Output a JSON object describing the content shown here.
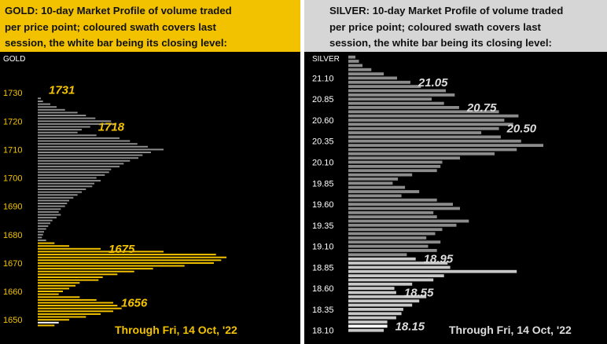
{
  "gold": {
    "header_lines": [
      "GOLD:  10-day Market Profile of volume traded",
      "per price point; coloured swath covers last",
      "session, the white bar being its closing level:"
    ],
    "footer": "Through Fri, 14 Oct, '22"
  },
  "silver": {
    "header_lines": [
      "SILVER:  10-day Market Profile of volume traded",
      "per price point; coloured swath covers last",
      "session, the white bar being its closing level:"
    ],
    "footer": "Through Fri, 14 Oct, '22"
  },
  "colors": {
    "gold_accent": "#f2c200",
    "silver_accent": "#d6d6d6",
    "bar_default": "#8c8c8c",
    "bar_session_gold": "#f2c200",
    "bar_session_silver": "#c8c8c8",
    "close_bar": "#ffffff",
    "gold_text": "#f2c200",
    "silver_text": "#dddddd"
  },
  "chart_data": [
    {
      "type": "bar",
      "orientation": "horizontal",
      "axis_title": "GOLD",
      "ylim": [
        1647,
        1740
      ],
      "ticks": [
        1650,
        1660,
        1670,
        1680,
        1690,
        1700,
        1710,
        1720,
        1730
      ],
      "tick_labels": [
        "1650",
        "1660",
        "1670",
        "1680",
        "1690",
        "1700",
        "1710",
        "1720",
        "1730"
      ],
      "bar_step": 1,
      "bars_from_top": [
        3,
        5,
        12,
        18,
        26,
        38,
        46,
        55,
        70,
        74,
        50,
        42,
        38,
        56,
        78,
        88,
        95,
        105,
        120,
        108,
        100,
        96,
        88,
        82,
        78,
        70,
        68,
        64,
        56,
        60,
        54,
        52,
        46,
        42,
        38,
        34,
        30,
        28,
        26,
        22,
        20,
        22,
        18,
        14,
        12,
        10,
        8,
        6,
        5,
        4,
        8,
        16,
        30,
        60,
        120,
        170,
        180,
        175,
        168,
        140,
        110,
        92,
        76,
        62,
        58,
        40,
        36,
        30,
        24,
        20,
        40,
        56,
        72,
        76,
        80,
        72,
        60,
        46,
        30,
        20,
        16
      ],
      "session_range": [
        1648,
        1677
      ],
      "close_level": 1649,
      "labels": [
        {
          "text": "1731",
          "value": 1731
        },
        {
          "text": "1718",
          "value": 1718
        },
        {
          "text": "1675",
          "value": 1675
        },
        {
          "text": "1656",
          "value": 1656
        }
      ]
    },
    {
      "type": "bar",
      "orientation": "horizontal",
      "axis_title": "SILVER",
      "ylim": [
        18.05,
        21.3
      ],
      "ticks": [
        18.1,
        18.35,
        18.6,
        18.85,
        19.1,
        19.35,
        19.6,
        19.85,
        20.1,
        20.35,
        20.6,
        20.85,
        21.1
      ],
      "tick_labels": [
        "18.10",
        "18.35",
        "18.60",
        "18.85",
        "19.10",
        "19.35",
        "19.60",
        "19.85",
        "20.10",
        "20.35",
        "20.60",
        "20.85",
        "21.10"
      ],
      "bar_step": 0.05,
      "bars_from_top": [
        8,
        12,
        16,
        26,
        40,
        55,
        70,
        82,
        110,
        120,
        94,
        108,
        125,
        170,
        192,
        176,
        186,
        170,
        150,
        172,
        195,
        220,
        190,
        165,
        126,
        106,
        104,
        100,
        72,
        56,
        50,
        64,
        80,
        60,
        100,
        118,
        126,
        96,
        100,
        136,
        122,
        106,
        98,
        88,
        104,
        90,
        100,
        66,
        76,
        112,
        115,
        190,
        108,
        96,
        72,
        52,
        54,
        88,
        80,
        72,
        62,
        60,
        54,
        44,
        44,
        40
      ],
      "session_range": [
        18.1,
        18.95
      ],
      "close_level": 18.15,
      "labels": [
        {
          "text": "21.05",
          "value": 21.05
        },
        {
          "text": "20.75",
          "value": 20.75
        },
        {
          "text": "20.50",
          "value": 20.5
        },
        {
          "text": "18.95",
          "value": 18.95
        },
        {
          "text": "18.55",
          "value": 18.55
        },
        {
          "text": "18.15",
          "value": 18.15
        }
      ]
    }
  ]
}
